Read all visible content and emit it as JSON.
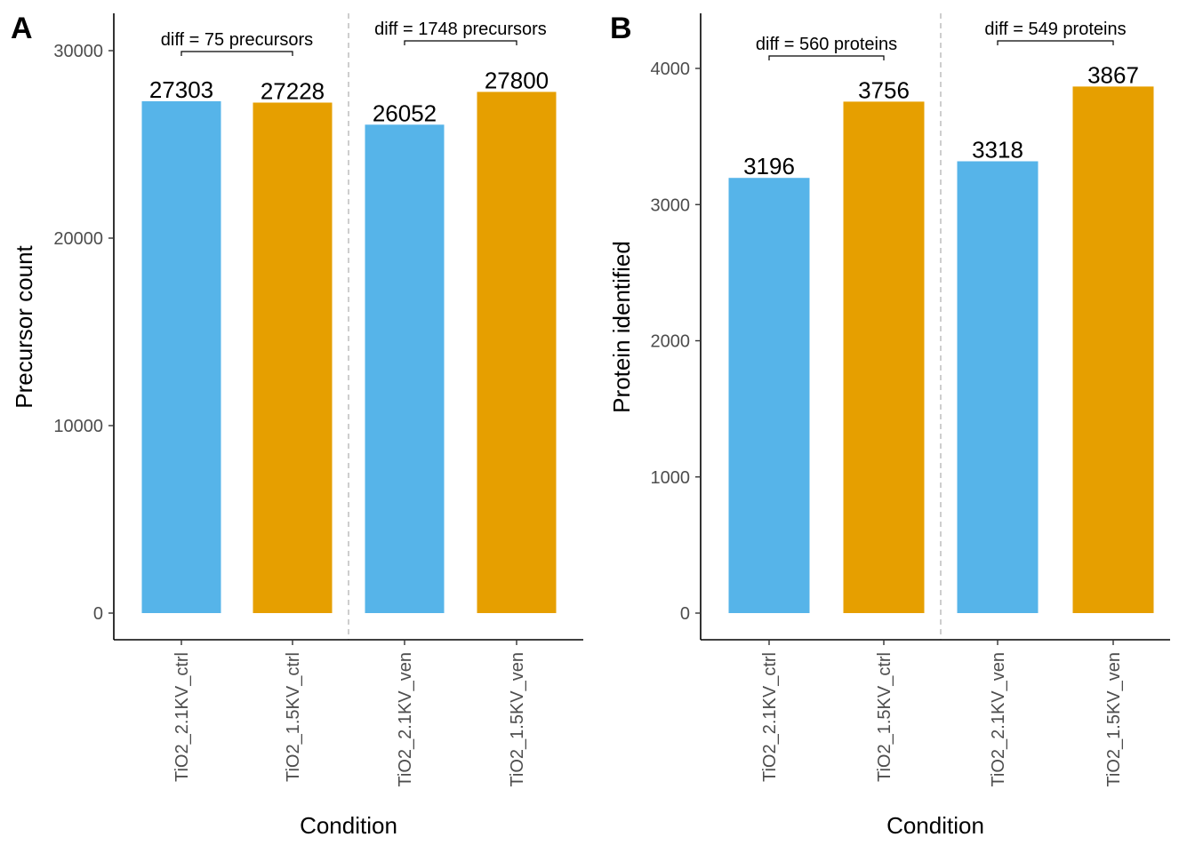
{
  "chart_data": [
    {
      "type": "bar",
      "panel_label": "A",
      "categories": [
        "TiO2_2.1KV_ctrl",
        "TiO2_1.5KV_ctrl",
        "TiO2_2.1KV_ven",
        "TiO2_1.5KV_ven"
      ],
      "values": [
        27303,
        27228,
        26052,
        27800
      ],
      "value_labels": [
        "27303",
        "27228",
        "26052",
        "27800"
      ],
      "bar_colors": [
        "#56B4E9",
        "#E69F00",
        "#56B4E9",
        "#E69F00"
      ],
      "xlabel": "Condition",
      "ylabel": "Precursor count",
      "ylim": [
        0,
        32000
      ],
      "yticks": [
        0,
        10000,
        20000,
        30000
      ],
      "ytick_labels": [
        "0",
        "10000",
        "20000",
        "30000"
      ],
      "grid": false,
      "group_separator_after_index": 1,
      "annotations": [
        {
          "text": "diff = 75 precursors",
          "from_index": 0,
          "to_index": 1
        },
        {
          "text": "diff = 1748 precursors",
          "from_index": 2,
          "to_index": 3
        }
      ]
    },
    {
      "type": "bar",
      "panel_label": "B",
      "categories": [
        "TiO2_2.1KV_ctrl",
        "TiO2_1.5KV_ctrl",
        "TiO2_2.1KV_ven",
        "TiO2_1.5KV_ven"
      ],
      "values": [
        3196,
        3756,
        3318,
        3867
      ],
      "value_labels": [
        "3196",
        "3756",
        "3318",
        "3867"
      ],
      "bar_colors": [
        "#56B4E9",
        "#E69F00",
        "#56B4E9",
        "#E69F00"
      ],
      "xlabel": "Condition",
      "ylabel": "Protein identified",
      "ylim": [
        0,
        4400
      ],
      "yticks": [
        0,
        1000,
        2000,
        3000,
        4000
      ],
      "ytick_labels": [
        "0",
        "1000",
        "2000",
        "3000",
        "4000"
      ],
      "grid": false,
      "group_separator_after_index": 1,
      "annotations": [
        {
          "text": "diff = 560 proteins",
          "from_index": 0,
          "to_index": 1
        },
        {
          "text": "diff = 549 proteins",
          "from_index": 2,
          "to_index": 3
        }
      ]
    }
  ]
}
